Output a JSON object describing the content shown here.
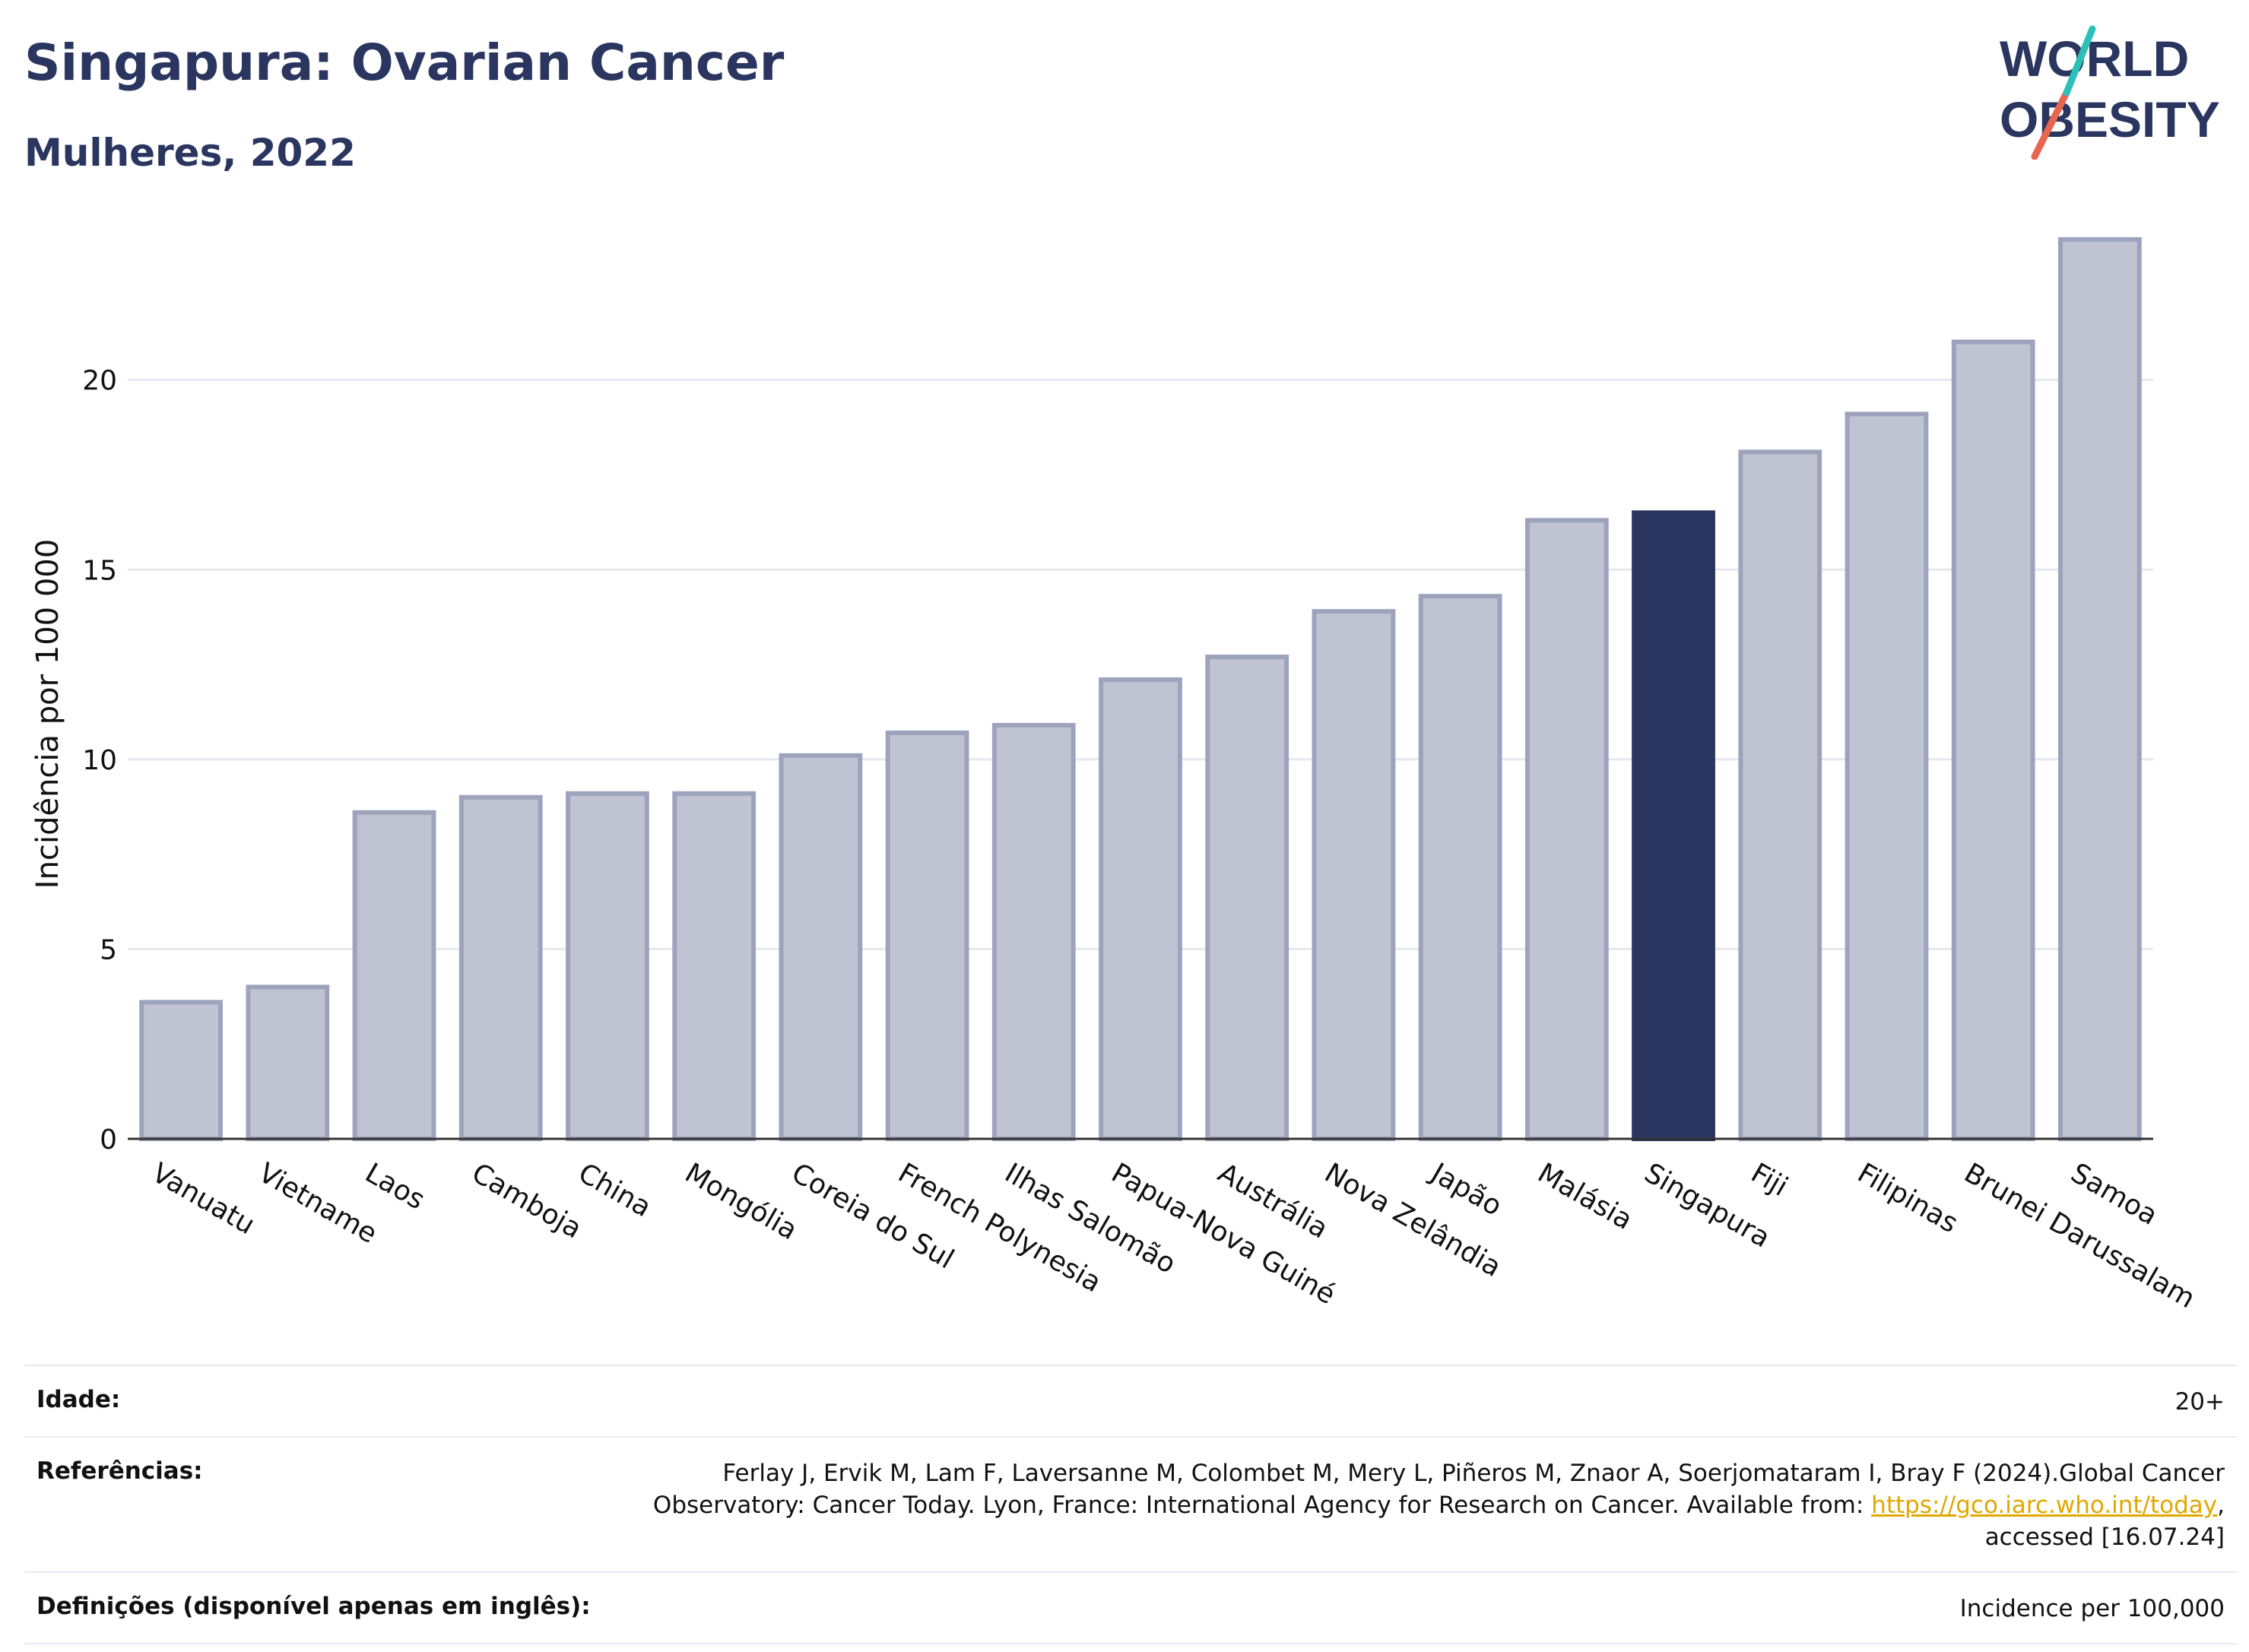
{
  "header": {
    "title": "Singapura: Ovarian Cancer",
    "subtitle": "Mulheres, 2022"
  },
  "logo": {
    "line1": "WORLD",
    "line2": "OBESITY",
    "accent_colors": [
      "#2cc0b8",
      "#e8654f"
    ],
    "text_color": "#2a3560"
  },
  "chart_data": {
    "type": "bar",
    "title": "",
    "xlabel": "",
    "ylabel": "Incidência por 100 000",
    "ylim": [
      0,
      24
    ],
    "yticks": [
      0,
      5,
      10,
      15,
      20
    ],
    "grid": true,
    "highlight": "Singapura",
    "colors": {
      "bar": "#c0c3d1",
      "bar_border": "#9ea3bd",
      "highlight": "#2a3560",
      "grid": "#e6e8ef",
      "axis": "#333333"
    },
    "categories": [
      "Vanuatu",
      "Vietname",
      "Laos",
      "Camboja",
      "China",
      "Mongólia",
      "Coreia do Sul",
      "French Polynesia",
      "Ilhas Salomão",
      "Papua-Nova Guiné",
      "Austrália",
      "Nova Zelândia",
      "Japão",
      "Malásia",
      "Singapura",
      "Fiji",
      "Filipinas",
      "Brunei Darussalam",
      "Samoa"
    ],
    "values": [
      3.6,
      4.0,
      8.6,
      9.0,
      9.1,
      9.1,
      10.1,
      10.7,
      10.9,
      12.1,
      12.7,
      13.9,
      14.3,
      16.3,
      16.5,
      18.1,
      19.1,
      21.0,
      23.7
    ]
  },
  "info": {
    "age_label": "Idade:",
    "age_value": "20+",
    "refs_label": "Referências:",
    "refs_line1": "Ferlay J, Ervik M, Lam F, Laversanne M, Colombet M, Mery L, Piñeros M, Znaor A, Soerjomataram I, Bray F (2024).Global Cancer",
    "refs_line2_pre": "Observatory: Cancer Today. Lyon, France: International Agency for Research on Cancer. Available from: ",
    "refs_link": "https://gco.iarc.who.int/today",
    "refs_line2_post": ",",
    "refs_line3": "accessed [16.07.24]",
    "defs_label": "Definições (disponível apenas em inglês):",
    "defs_value": "Incidence per 100,000"
  }
}
